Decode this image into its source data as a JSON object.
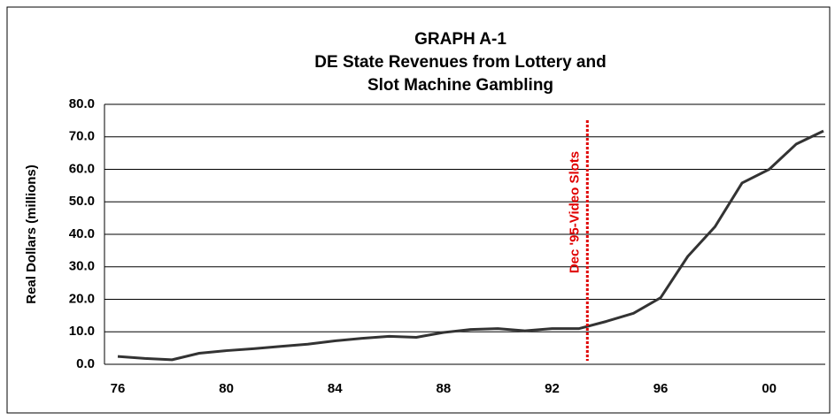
{
  "chart_data": {
    "type": "line",
    "title": [
      "GRAPH A-1",
      "DE State Revenues from Lottery and",
      "Slot Machine Gambling"
    ],
    "y_label": "Real Dollars (millions)",
    "categories": [
      "76",
      null,
      null,
      null,
      "80",
      null,
      null,
      null,
      "84",
      null,
      null,
      null,
      "88",
      null,
      null,
      null,
      "92",
      null,
      null,
      null,
      "96",
      null,
      null,
      null,
      "00",
      null,
      null
    ],
    "series": [
      {
        "name": "Revenues",
        "color": "#333333",
        "values": [
          2.4,
          1.8,
          1.4,
          3.4,
          4.2,
          4.8,
          5.5,
          6.2,
          7.2,
          8.0,
          8.6,
          8.3,
          9.8,
          10.7,
          11.0,
          10.3,
          11.0,
          11.0,
          13.2,
          15.7,
          20.5,
          33.2,
          42.3,
          55.8,
          60.0,
          67.8,
          71.8
        ]
      }
    ],
    "ylim": [
      0,
      80
    ],
    "yticks": [
      {
        "value": 0,
        "label": "0.0"
      },
      {
        "value": 10,
        "label": "10.0"
      },
      {
        "value": 20,
        "label": "20.0"
      },
      {
        "value": 30,
        "label": "30.0"
      },
      {
        "value": 40,
        "label": "40.0"
      },
      {
        "value": 50,
        "label": "50.0"
      },
      {
        "value": 60,
        "label": "60.0"
      },
      {
        "value": 70,
        "label": "70.0"
      },
      {
        "value": 80,
        "label": "80.0"
      }
    ],
    "grid": true,
    "annotation": {
      "text": "Dec '95-Video Slots",
      "x": 17.3,
      "color": "#e00000"
    }
  }
}
